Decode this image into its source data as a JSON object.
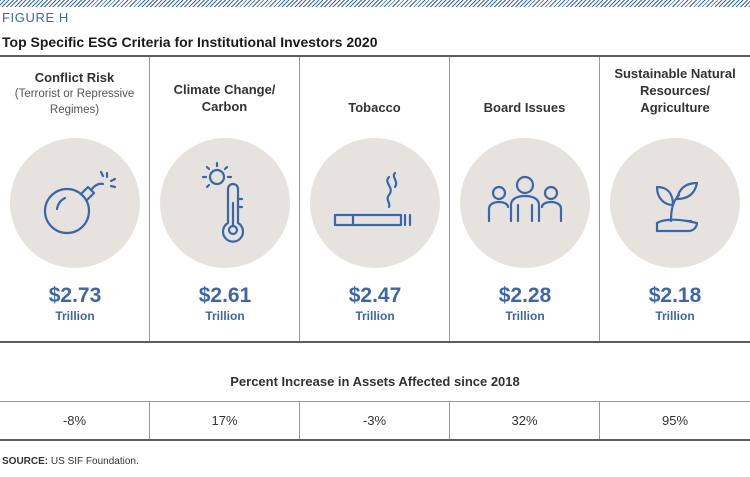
{
  "figure_label": "FIGURE H",
  "title": "Top Specific ESG Criteria for Institutional Investors 2020",
  "pct_heading": "Percent Increase in Assets Affected since 2018",
  "source_label": "SOURCE:",
  "source_text": "US SIF Foundation.",
  "colors": {
    "accent": "#3a67ab",
    "circle": "#e6e3de",
    "rule": "#5c5c5c"
  },
  "chart_data": {
    "type": "table",
    "unit": "Trillion",
    "categories": [
      {
        "label": "Conflict Risk",
        "sublabel": "(Terrorist or Repressive Regimes)",
        "value": "$2.73",
        "amount_trillion": 2.73,
        "icon": "bomb-icon",
        "pct_increase": "-8%"
      },
      {
        "label": "Climate Change/ Carbon",
        "sublabel": "",
        "value": "$2.61",
        "amount_trillion": 2.61,
        "icon": "thermometer-sun-icon",
        "pct_increase": "17%"
      },
      {
        "label": "Tobacco",
        "sublabel": "",
        "value": "$2.47",
        "amount_trillion": 2.47,
        "icon": "cigarette-icon",
        "pct_increase": "-3%"
      },
      {
        "label": "Board Issues",
        "sublabel": "",
        "value": "$2.28",
        "amount_trillion": 2.28,
        "icon": "people-group-icon",
        "pct_increase": "32%"
      },
      {
        "label": "Sustainable Natural Resources/ Agriculture",
        "sublabel": "",
        "value": "$2.18",
        "amount_trillion": 2.18,
        "icon": "sprout-hand-icon",
        "pct_increase": "95%"
      }
    ]
  }
}
